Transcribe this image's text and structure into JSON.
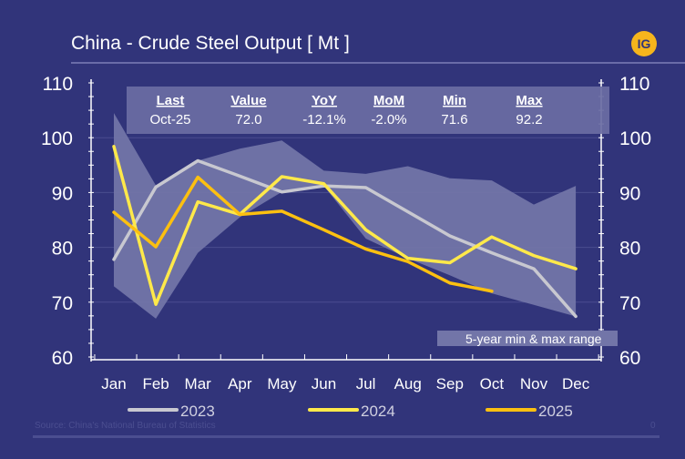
{
  "title": "China - Crude Steel Output [ Mt ]",
  "logo": "IG",
  "source": "Source: China's National Bureau of Statistics",
  "footer_number": "0",
  "summary": {
    "headers": [
      "Last",
      "Value",
      "YoY",
      "MoM",
      "Min",
      "Max"
    ],
    "values": [
      "Oct-25",
      "72.0",
      "-12.1%",
      "-2.0%",
      "71.6",
      "92.2"
    ]
  },
  "band_label": "5-year min & max range",
  "colors": {
    "background": "#31347a",
    "band": "#7275a8",
    "2023": "#c8c8d0",
    "2024": "#ffe94a",
    "2025": "#fcc010"
  },
  "chart_data": {
    "type": "line",
    "categories": [
      "Jan",
      "Feb",
      "Mar",
      "Apr",
      "May",
      "Jun",
      "Jul",
      "Aug",
      "Sep",
      "Oct",
      "Nov",
      "Dec"
    ],
    "ylim": [
      60,
      110
    ],
    "yticks": [
      60,
      70,
      80,
      90,
      100,
      110
    ],
    "grid": true,
    "legend": "bottom",
    "band": {
      "name": "5-year min & max range",
      "max": [
        104.5,
        91.3,
        95.8,
        98.0,
        99.5,
        94.0,
        93.4,
        94.8,
        92.6,
        92.2,
        87.8,
        91.2
      ],
      "min": [
        72.9,
        67.0,
        79.0,
        85.5,
        90.1,
        91.2,
        81.6,
        78.0,
        74.9,
        71.6,
        69.5,
        67.4
      ]
    },
    "series": [
      {
        "name": "2023",
        "values": [
          77.8,
          91.0,
          95.8,
          93.0,
          90.1,
          91.2,
          90.9,
          86.5,
          82.1,
          79.0,
          76.1,
          67.4
        ]
      },
      {
        "name": "2024",
        "values": [
          98.4,
          69.6,
          88.3,
          86.0,
          92.9,
          91.6,
          83.2,
          78.0,
          77.2,
          81.9,
          78.5,
          76.1
        ]
      },
      {
        "name": "2025",
        "values": [
          86.4,
          80.1,
          92.8,
          86.0,
          86.6,
          83.2,
          79.7,
          77.4,
          73.5,
          72.0,
          null,
          null
        ]
      }
    ]
  }
}
